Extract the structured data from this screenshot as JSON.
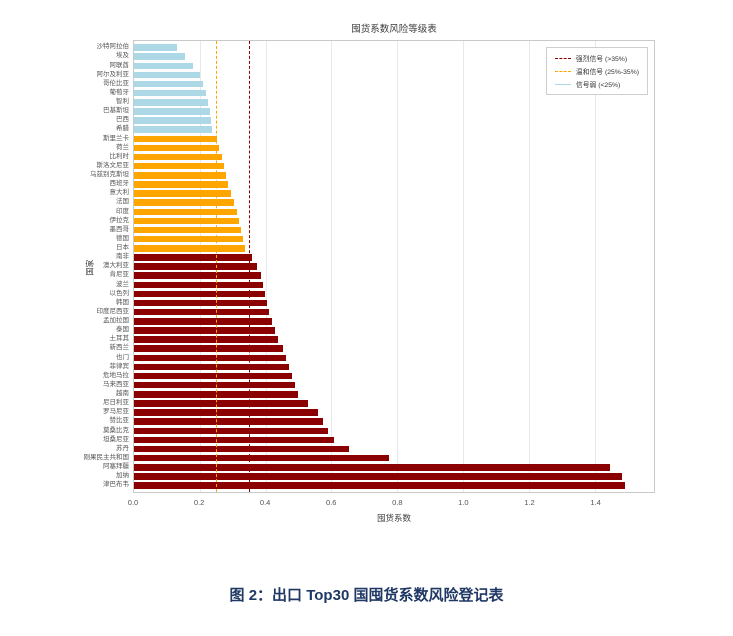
{
  "figure": {
    "title": "囤货系数风险等级表",
    "xlabel": "囤货系数",
    "ylabel": "国家",
    "caption": "图 2：出口 Top30 国囤货系数风险登记表",
    "legend": {
      "items": [
        {
          "label": "强烈信号 (>35%)",
          "color": "#8B0000",
          "line_style": "dashed"
        },
        {
          "label": "温和信号 (25%-35%)",
          "color": "#FFA500",
          "line_style": "dashed"
        },
        {
          "label": "信号弱 (<25%)",
          "color": "#ADD8E6",
          "line_style": "solid"
        }
      ]
    }
  },
  "chart_data": {
    "type": "bar",
    "orientation": "horizontal",
    "title": "囤货系数风险等级表",
    "xlabel": "囤货系数",
    "ylabel": "国家",
    "xlim": [
      0,
      1.58
    ],
    "x_ticks": [
      0.0,
      0.2,
      0.4,
      0.6,
      0.8,
      1.0,
      1.2,
      1.4
    ],
    "grid": "vertical",
    "legend_position": "top-right",
    "bands": {
      "weak_below": 0.25,
      "strong_above": 0.35,
      "colors": {
        "weak": "#ADD8E6",
        "moderate": "#FFA500",
        "strong": "#8B0000"
      }
    },
    "threshold_lines": [
      {
        "value": 0.25,
        "color": "#FFA500",
        "label": "温和信号 (25%-35%)"
      },
      {
        "value": 0.35,
        "color": "#8B0000",
        "label": "强烈信号 (>35%)"
      }
    ],
    "categories": [
      "沙特阿拉伯",
      "埃及",
      "阿联酋",
      "阿尔及利亚",
      "哥伦比亚",
      "葡萄牙",
      "智利",
      "巴基斯坦",
      "巴西",
      "希腊",
      "斯里兰卡",
      "荷兰",
      "比利时",
      "斯洛文尼亚",
      "乌兹别克斯坦",
      "西班牙",
      "意大利",
      "法国",
      "印度",
      "伊拉克",
      "墨西哥",
      "德国",
      "日本",
      "南非",
      "澳大利亚",
      "肯尼亚",
      "波兰",
      "以色列",
      "韩国",
      "印度尼西亚",
      "孟加拉国",
      "泰国",
      "土耳其",
      "新西兰",
      "也门",
      "菲律宾",
      "危地马拉",
      "马来西亚",
      "越南",
      "尼日利亚",
      "罗马尼亚",
      "赞比亚",
      "莫桑比克",
      "坦桑尼亚",
      "苏丹",
      "刚果民主共和国",
      "阿塞拜疆",
      "加纳",
      "津巴布韦"
    ],
    "values": [
      0.13,
      0.155,
      0.18,
      0.2,
      0.21,
      0.218,
      0.224,
      0.23,
      0.233,
      0.236,
      0.252,
      0.258,
      0.267,
      0.273,
      0.279,
      0.285,
      0.294,
      0.303,
      0.312,
      0.318,
      0.324,
      0.33,
      0.336,
      0.36,
      0.373,
      0.385,
      0.391,
      0.397,
      0.403,
      0.409,
      0.418,
      0.427,
      0.439,
      0.452,
      0.461,
      0.47,
      0.479,
      0.488,
      0.497,
      0.53,
      0.558,
      0.573,
      0.588,
      0.609,
      0.652,
      0.776,
      1.445,
      1.482,
      1.491
    ]
  }
}
